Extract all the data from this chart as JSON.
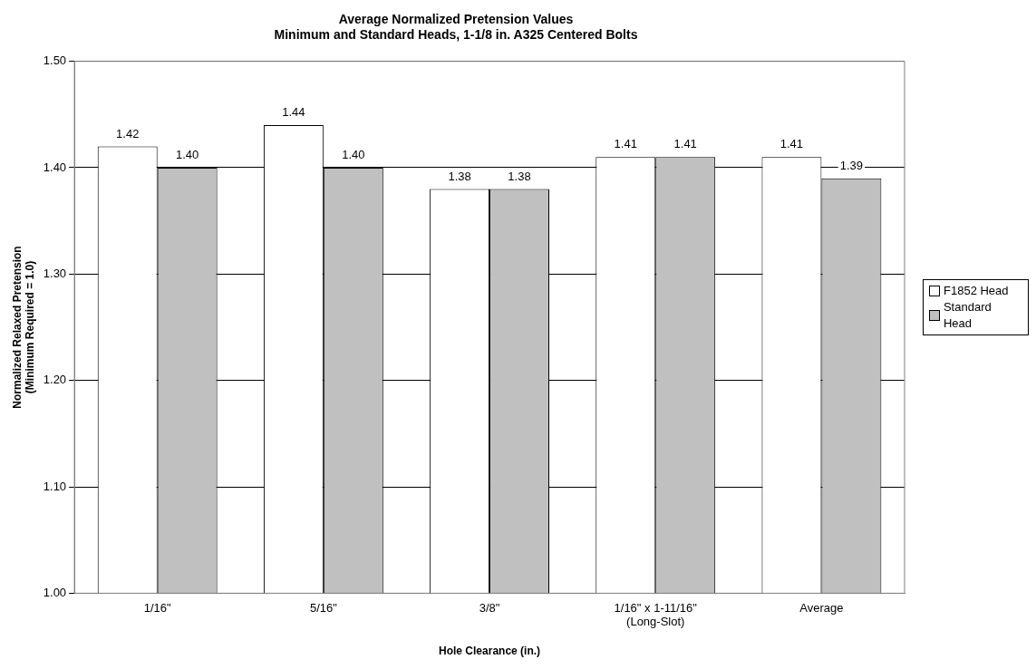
{
  "chart_data": {
    "type": "bar",
    "title": "Average Normalized Pretension Values",
    "subtitle": "Minimum and Standard Heads, 1-1/8 in. A325 Centered Bolts",
    "xlabel": "Hole Clearance (in.)",
    "ylabel": "Normalized Relaxed Pretension\n(Minimum Required = 1.0)",
    "categories": [
      "1/16\"",
      "5/16\"",
      "3/8\"",
      "1/16\" x 1-11/16\"\n(Long-Slot)",
      "Average"
    ],
    "series": [
      {
        "name": "F1852 Head",
        "color": "#ffffff",
        "values": [
          1.42,
          1.44,
          1.38,
          1.41,
          1.41
        ],
        "value_labels": [
          "1.42",
          "1.44",
          "1.38",
          "1.41",
          "1.41"
        ]
      },
      {
        "name": "Standard Head",
        "color": "#c0c0c0",
        "values": [
          1.4,
          1.4,
          1.38,
          1.41,
          1.39
        ],
        "value_labels": [
          "1.40",
          "1.40",
          "1.38",
          "1.41",
          "1.39"
        ]
      }
    ],
    "ylim": [
      1.0,
      1.5
    ],
    "yticks": [
      {
        "value": 1.0,
        "label": "1.00"
      },
      {
        "value": 1.1,
        "label": "1.10"
      },
      {
        "value": 1.2,
        "label": "1.20"
      },
      {
        "value": 1.3,
        "label": "1.30"
      },
      {
        "value": 1.4,
        "label": "1.40"
      },
      {
        "value": 1.5,
        "label": "1.50"
      }
    ],
    "grid": "y",
    "legend": "right"
  }
}
